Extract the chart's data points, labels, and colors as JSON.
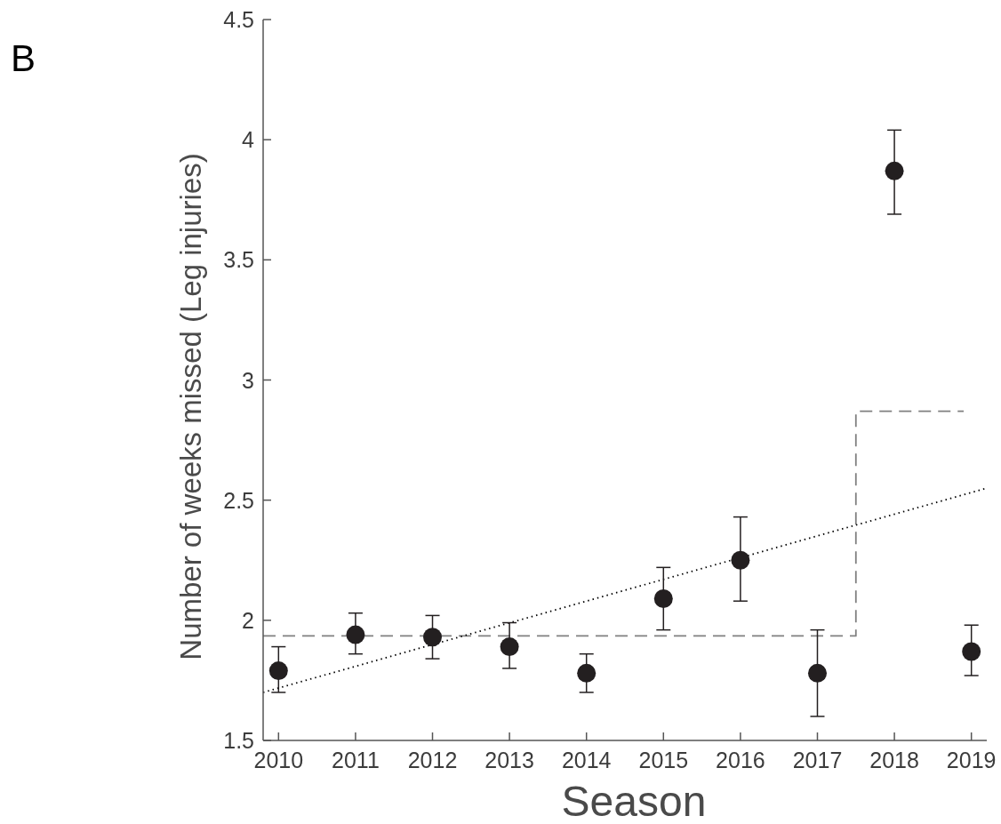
{
  "chart_data": {
    "type": "scatter",
    "xlabel": "Season",
    "ylabel": "Number of weeks missed (Leg injuries)",
    "annotations": [
      "B"
    ],
    "xlim": [
      2009.8,
      2019.2
    ],
    "xticks": [
      2010,
      2011,
      2012,
      2013,
      2014,
      2015,
      2016,
      2017,
      2018,
      2019
    ],
    "ylim": [
      1.5,
      4.5
    ],
    "yticks": [
      1.5,
      2,
      2.5,
      3,
      3.5,
      4,
      4.5
    ],
    "grid": false,
    "series": [
      {
        "type": "line",
        "color": "#808080",
        "line_style": "dashed",
        "marker": "none",
        "x": [
          2009.8,
          2017.5,
          2017.5,
          2018.9
        ],
        "values": [
          1.935,
          1.935,
          2.87,
          2.87
        ]
      },
      {
        "type": "line",
        "color": "#000000",
        "line_style": "dotted",
        "marker": "none",
        "x": [
          2009.8,
          2019.2
        ],
        "values": [
          1.7,
          2.55
        ]
      },
      {
        "color": "#231f20",
        "marker": "circle",
        "x": [
          2010,
          2011,
          2012,
          2013,
          2014,
          2015,
          2016,
          2017,
          2018,
          2019
        ],
        "values": [
          1.79,
          1.94,
          1.93,
          1.89,
          1.78,
          2.09,
          2.25,
          1.78,
          3.87,
          1.87
        ],
        "errors": [
          [
            1.7,
            1.89
          ],
          [
            1.86,
            2.03
          ],
          [
            1.84,
            2.02
          ],
          [
            1.8,
            1.99
          ],
          [
            1.7,
            1.86
          ],
          [
            1.96,
            2.22
          ],
          [
            2.08,
            2.43
          ],
          [
            1.6,
            1.96
          ],
          [
            3.69,
            4.04
          ],
          [
            1.77,
            1.98
          ]
        ]
      }
    ]
  }
}
